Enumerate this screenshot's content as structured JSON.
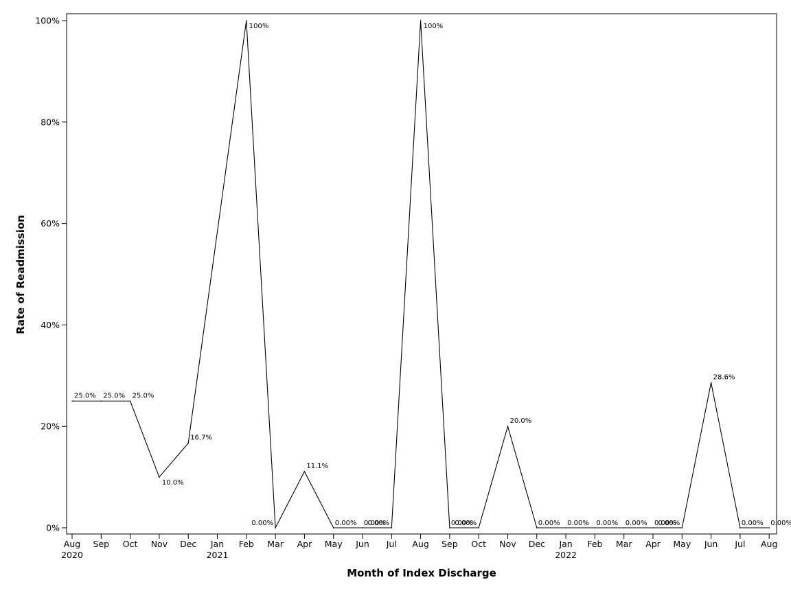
{
  "chart_data": {
    "type": "line",
    "xlabel": "Month of Index Discharge",
    "ylabel": "Rate of Readmission",
    "ylim": [
      0,
      100
    ],
    "y_unit": "%",
    "y_ticks": [
      "0%",
      "20%",
      "40%",
      "60%",
      "80%",
      "100%"
    ],
    "grid": false,
    "x_ticks": [
      {
        "month": "Aug",
        "year": "2020"
      },
      {
        "month": "Sep",
        "year": ""
      },
      {
        "month": "Oct",
        "year": ""
      },
      {
        "month": "Nov",
        "year": ""
      },
      {
        "month": "Dec",
        "year": ""
      },
      {
        "month": "Jan",
        "year": "2021"
      },
      {
        "month": "Feb",
        "year": ""
      },
      {
        "month": "Mar",
        "year": ""
      },
      {
        "month": "Apr",
        "year": ""
      },
      {
        "month": "May",
        "year": ""
      },
      {
        "month": "Jun",
        "year": ""
      },
      {
        "month": "Jul",
        "year": ""
      },
      {
        "month": "Aug",
        "year": ""
      },
      {
        "month": "Sep",
        "year": ""
      },
      {
        "month": "Oct",
        "year": ""
      },
      {
        "month": "Nov",
        "year": ""
      },
      {
        "month": "Dec",
        "year": ""
      },
      {
        "month": "Jan",
        "year": "2022"
      },
      {
        "month": "Feb",
        "year": ""
      },
      {
        "month": "Mar",
        "year": ""
      },
      {
        "month": "Apr",
        "year": ""
      },
      {
        "month": "May",
        "year": ""
      },
      {
        "month": "Jun",
        "year": ""
      },
      {
        "month": "Jul",
        "year": ""
      },
      {
        "month": "Aug",
        "year": ""
      }
    ],
    "series": [
      {
        "color": "#000000",
        "points": [
          {
            "x": "2020-08",
            "y": 25.0,
            "label": "25.0%"
          },
          {
            "x": "2020-09",
            "y": 25.0,
            "label": "25.0%"
          },
          {
            "x": "2020-10",
            "y": 25.0,
            "label": "25.0%"
          },
          {
            "x": "2020-11",
            "y": 10.0,
            "label": "10.0%"
          },
          {
            "x": "2020-12",
            "y": 16.7,
            "label": "16.7%"
          },
          {
            "x": "2021-02",
            "y": 100.0,
            "label": "100%"
          },
          {
            "x": "2021-03",
            "y": 0.0,
            "label": "0.00%"
          },
          {
            "x": "2021-04",
            "y": 11.1,
            "label": "11.1%"
          },
          {
            "x": "2021-05",
            "y": 0.0,
            "label": "0.00%"
          },
          {
            "x": "2021-06",
            "y": 0.0,
            "label": "0.00%"
          },
          {
            "x": "2021-07",
            "y": 0.0,
            "label": "0.00%"
          },
          {
            "x": "2021-08",
            "y": 100.0,
            "label": "100%"
          },
          {
            "x": "2021-09",
            "y": 0.0,
            "label": "0.00%"
          },
          {
            "x": "2021-10",
            "y": 0.0,
            "label": "0.00%"
          },
          {
            "x": "2021-11",
            "y": 20.0,
            "label": "20.0%"
          },
          {
            "x": "2021-12",
            "y": 0.0,
            "label": "0.00%"
          },
          {
            "x": "2022-01",
            "y": 0.0,
            "label": "0.00%"
          },
          {
            "x": "2022-02",
            "y": 0.0,
            "label": "0.00%"
          },
          {
            "x": "2022-03",
            "y": 0.0,
            "label": "0.00%"
          },
          {
            "x": "2022-04",
            "y": 0.0,
            "label": "0.00%"
          },
          {
            "x": "2022-05",
            "y": 0.0,
            "label": "0.00%"
          },
          {
            "x": "2022-06",
            "y": 28.6,
            "label": "28.6%"
          },
          {
            "x": "2022-07",
            "y": 0.0,
            "label": "0.00%"
          },
          {
            "x": "2022-08",
            "y": 0.0,
            "label": "0.00%"
          }
        ]
      }
    ]
  }
}
